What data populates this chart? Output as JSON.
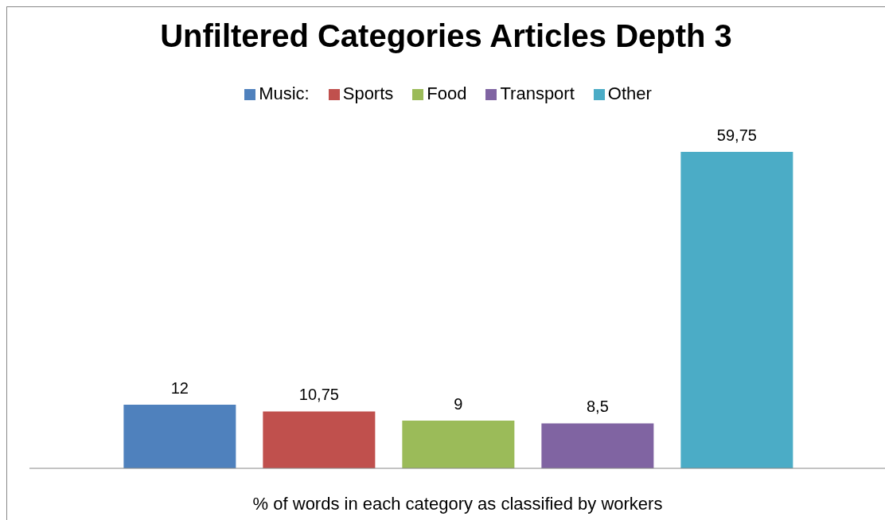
{
  "chart_data": {
    "type": "bar",
    "title": "Unfiltered Categories Articles Depth 3",
    "xlabel": "% of words in each category as classified by workers",
    "categories": [
      null
    ],
    "series": [
      {
        "name": "Music:",
        "color": "#4f81bd",
        "values": [
          12
        ],
        "value_labels": [
          "12"
        ]
      },
      {
        "name": "Sports",
        "color": "#c0504d",
        "values": [
          10.75
        ],
        "value_labels": [
          "10,75"
        ]
      },
      {
        "name": "Food",
        "color": "#9bbb59",
        "values": [
          9
        ],
        "value_labels": [
          "9"
        ]
      },
      {
        "name": "Transport",
        "color": "#8064a2",
        "values": [
          8.5
        ],
        "value_labels": [
          "8,5"
        ]
      },
      {
        "name": "Other",
        "color": "#4bacc6",
        "values": [
          59.75
        ],
        "value_labels": [
          "59,75"
        ]
      }
    ],
    "grid": false,
    "legend": "top"
  }
}
